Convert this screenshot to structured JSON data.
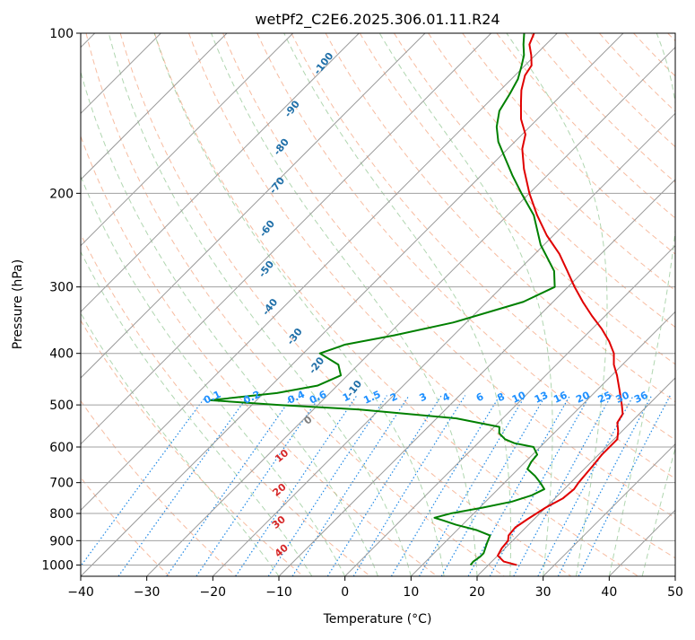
{
  "chart_data": {
    "type": "line",
    "title": "wetPf2_C2E6.2025.306.01.11.R24",
    "xlabel": "Temperature (°C)",
    "ylabel": "Pressure (hPa)",
    "xlim": [
      -40,
      50
    ],
    "ylim": [
      1050,
      100
    ],
    "x_ticks": [
      -40,
      -30,
      -20,
      -10,
      0,
      10,
      20,
      30,
      40,
      50
    ],
    "y_ticks": [
      100,
      200,
      300,
      400,
      500,
      600,
      700,
      800,
      900,
      1000
    ],
    "x_tick_labels": [
      "−40",
      "−30",
      "−20",
      "−10",
      "0",
      "10",
      "20",
      "30",
      "40",
      "50"
    ],
    "y_tick_labels": [
      "100",
      "200",
      "300",
      "400",
      "500",
      "600",
      "700",
      "800",
      "900",
      "1000"
    ],
    "colors": {
      "temperature": "#e00000",
      "dewpoint": "#008000",
      "isotherm": "#9a9a9a",
      "isobar": "#a0a0a0",
      "dry_adiabat": "#f4a582",
      "moist_adiabat": "#8fc48f",
      "mixing_ratio": "#1e88e5"
    },
    "series": [
      {
        "name": "Temperature",
        "color": "#e00000",
        "points": [
          [
            1000,
            24.3
          ],
          [
            985,
            21.8
          ],
          [
            960,
            20.0
          ],
          [
            930,
            19.5
          ],
          [
            900,
            19.3
          ],
          [
            880,
            18.6
          ],
          [
            850,
            18.4
          ],
          [
            820,
            19.0
          ],
          [
            780,
            20.0
          ],
          [
            750,
            21.2
          ],
          [
            720,
            21.5
          ],
          [
            700,
            21.2
          ],
          [
            650,
            20.8
          ],
          [
            620,
            20.5
          ],
          [
            580,
            20.5
          ],
          [
            560,
            19.4
          ],
          [
            540,
            18.0
          ],
          [
            520,
            17.5
          ],
          [
            500,
            16.0
          ],
          [
            470,
            13.5
          ],
          [
            440,
            10.8
          ],
          [
            420,
            8.7
          ],
          [
            400,
            7.0
          ],
          [
            380,
            4.5
          ],
          [
            360,
            1.5
          ],
          [
            340,
            -2.0
          ],
          [
            320,
            -5.5
          ],
          [
            300,
            -9.0
          ],
          [
            280,
            -12.5
          ],
          [
            260,
            -16.3
          ],
          [
            240,
            -21.0
          ],
          [
            220,
            -25.5
          ],
          [
            200,
            -30.0
          ],
          [
            180,
            -34.5
          ],
          [
            165,
            -37.8
          ],
          [
            155,
            -39.5
          ],
          [
            145,
            -42.5
          ],
          [
            135,
            -45.0
          ],
          [
            128,
            -46.8
          ],
          [
            120,
            -48.5
          ],
          [
            115,
            -49.0
          ],
          [
            110,
            -50.6
          ],
          [
            105,
            -52.5
          ],
          [
            100,
            -53.5
          ]
        ]
      },
      {
        "name": "Dewpoint",
        "color": "#008000",
        "points": [
          [
            1000,
            17.3
          ],
          [
            985,
            17.2
          ],
          [
            965,
            17.5
          ],
          [
            950,
            17.5
          ],
          [
            930,
            17.0
          ],
          [
            910,
            16.5
          ],
          [
            880,
            15.8
          ],
          [
            860,
            13.0
          ],
          [
            840,
            9.0
          ],
          [
            825,
            6.5
          ],
          [
            815,
            4.7
          ],
          [
            800,
            6.5
          ],
          [
            780,
            10.5
          ],
          [
            760,
            14.0
          ],
          [
            740,
            16.0
          ],
          [
            720,
            17.0
          ],
          [
            700,
            15.4
          ],
          [
            680,
            13.6
          ],
          [
            660,
            11.4
          ],
          [
            640,
            10.9
          ],
          [
            620,
            10.7
          ],
          [
            600,
            9.0
          ],
          [
            590,
            5.5
          ],
          [
            580,
            3.5
          ],
          [
            565,
            1.7
          ],
          [
            550,
            0.8
          ],
          [
            530,
            -7.0
          ],
          [
            510,
            -23.0
          ],
          [
            500,
            -36.0
          ],
          [
            490,
            -47.0
          ],
          [
            475,
            -38.0
          ],
          [
            460,
            -33.0
          ],
          [
            440,
            -31.0
          ],
          [
            420,
            -33.0
          ],
          [
            400,
            -37.5
          ],
          [
            385,
            -35.0
          ],
          [
            370,
            -29.0
          ],
          [
            350,
            -22.0
          ],
          [
            320,
            -14.5
          ],
          [
            300,
            -12.0
          ],
          [
            280,
            -14.5
          ],
          [
            250,
            -20.5
          ],
          [
            220,
            -26.0
          ],
          [
            200,
            -31.2
          ],
          [
            185,
            -35.3
          ],
          [
            170,
            -39.5
          ],
          [
            160,
            -42.5
          ],
          [
            150,
            -45.0
          ],
          [
            140,
            -47.0
          ],
          [
            130,
            -48.0
          ],
          [
            122,
            -49.0
          ],
          [
            115,
            -50.5
          ],
          [
            110,
            -51.7
          ],
          [
            105,
            -53.4
          ],
          [
            100,
            -55.0
          ]
        ]
      }
    ],
    "dry_adiabat_labels": [
      {
        "value": -100,
        "label": "-100",
        "p": 115,
        "t": -80.1
      },
      {
        "value": -90,
        "label": "-90",
        "p": 140,
        "t": -78.0
      },
      {
        "value": -80,
        "label": "-80",
        "p": 165,
        "t": -73.9
      },
      {
        "value": -70,
        "label": "-70",
        "p": 195,
        "t": -68.7
      },
      {
        "value": -60,
        "label": "-60",
        "p": 235,
        "t": -63.7
      },
      {
        "value": -50,
        "label": "-50",
        "p": 280,
        "t": -57.7
      },
      {
        "value": -40,
        "label": "-40",
        "p": 330,
        "t": -51.4
      },
      {
        "value": -30,
        "label": "-30",
        "p": 375,
        "t": -43.2
      },
      {
        "value": -20,
        "label": "-20",
        "p": 425,
        "t": -35.5
      },
      {
        "value": -10,
        "label": "-10",
        "p": 470,
        "t": -26.3
      }
    ],
    "moist_adiabat_labels": [
      {
        "value": 0,
        "label": "0",
        "p": 540,
        "t": -28.5
      },
      {
        "value": 10,
        "label": "10",
        "p": 630,
        "t": -27.1
      },
      {
        "value": 20,
        "label": "20",
        "p": 730,
        "t": -22.3
      },
      {
        "value": 30,
        "label": "30",
        "p": 840,
        "t": -17.5
      },
      {
        "value": 40,
        "label": "40",
        "p": 950,
        "t": -12.8
      }
    ],
    "mixing_ratio_labels": [
      "0.1",
      "0.2",
      "0.4",
      "0.6",
      "1",
      "1.5",
      "2",
      "3",
      "4",
      "6",
      "8",
      "10",
      "13",
      "16",
      "20",
      "25",
      "30",
      "36"
    ],
    "mixing_ratio_label_positions": [
      {
        "label": "0.1",
        "t": -46.5
      },
      {
        "label": "0.2",
        "t": -40.5
      },
      {
        "label": "0.4",
        "t": -33.8
      },
      {
        "label": "0.6",
        "t": -30.5
      },
      {
        "label": "1",
        "t": -26.2
      },
      {
        "label": "1.5",
        "t": -22.3
      },
      {
        "label": "2",
        "t": -19.0
      },
      {
        "label": "3",
        "t": -14.6
      },
      {
        "label": "4",
        "t": -11.1
      },
      {
        "label": "6",
        "t": -6.0
      },
      {
        "label": "8",
        "t": -2.8
      },
      {
        "label": "10",
        "t": -0.1
      },
      {
        "label": "13",
        "t": 3.3
      },
      {
        "label": "16",
        "t": 6.2
      },
      {
        "label": "20",
        "t": 9.6
      },
      {
        "label": "25",
        "t": 12.9
      },
      {
        "label": "30",
        "t": 15.6
      },
      {
        "label": "36",
        "t": 18.4
      }
    ],
    "mixing_ratio_label_pressure": 490,
    "grid": true
  }
}
